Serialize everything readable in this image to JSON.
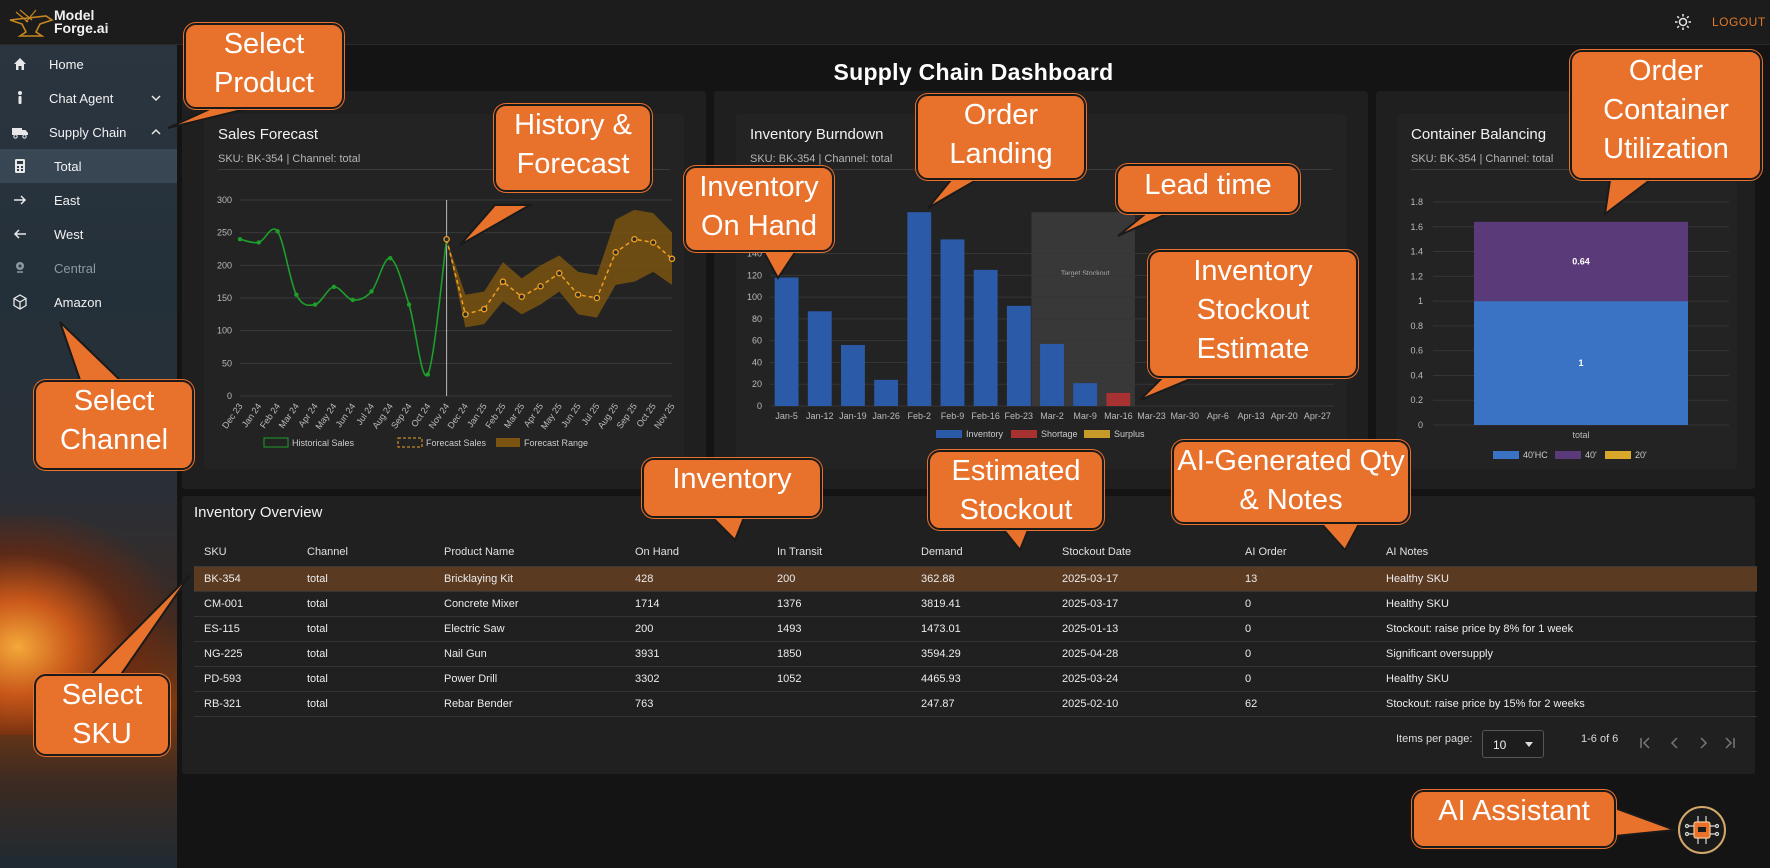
{
  "app": {
    "logo_line1": "Model",
    "logo_line2": "Forge.ai",
    "logout": "LOGOUT"
  },
  "sidebar": {
    "items": [
      {
        "label": "Home",
        "icon": "home-icon"
      },
      {
        "label": "Chat Agent",
        "icon": "person-icon"
      },
      {
        "label": "Supply Chain",
        "icon": "truck-icon"
      },
      {
        "label": "Total",
        "icon": "calculator-icon"
      },
      {
        "label": "East",
        "icon": "arrow-right-icon"
      },
      {
        "label": "West",
        "icon": "arrow-left-icon"
      },
      {
        "label": "Central",
        "icon": "pin-icon"
      },
      {
        "label": "Amazon",
        "icon": "box-icon"
      }
    ]
  },
  "page": {
    "title": "Supply Chain Dashboard"
  },
  "sales_card": {
    "title": "Sales Forecast",
    "subtitle": "SKU: BK-354 | Channel: total"
  },
  "inventory_card": {
    "title": "Inventory Burndown",
    "subtitle": "SKU: BK-354 | Channel: total"
  },
  "container_card": {
    "title": "Container Balancing",
    "subtitle": "SKU: BK-354 | Channel: total"
  },
  "chart_data": [
    {
      "type": "line",
      "x": [
        "Dec 23",
        "Jan 24",
        "Feb 24",
        "Mar 24",
        "Apr 24",
        "May 24",
        "Jun 24",
        "Jul 24",
        "Aug 24",
        "Sep 24",
        "Oct 24",
        "Nov 24",
        "Dec 24",
        "Jan 25",
        "Feb 25",
        "Mar 25",
        "Apr 25",
        "May 25",
        "Jun 25",
        "Jul 25",
        "Aug 25",
        "Sep 25",
        "Oct 25",
        "Nov 25"
      ],
      "series": [
        {
          "name": "Historical Sales",
          "values": [
            240,
            235,
            252,
            155,
            140,
            167,
            147,
            160,
            211,
            140,
            33,
            240,
            null,
            null,
            null,
            null,
            null,
            null,
            null,
            null,
            null,
            null,
            null,
            null
          ]
        },
        {
          "name": "Forecast Sales",
          "values": [
            null,
            null,
            null,
            null,
            null,
            null,
            null,
            null,
            null,
            null,
            null,
            240,
            125,
            133,
            175,
            152,
            168,
            188,
            155,
            150,
            220,
            240,
            235,
            210
          ]
        },
        {
          "name": "Forecast Range",
          "lower": [
            null,
            null,
            null,
            null,
            null,
            null,
            null,
            null,
            null,
            null,
            null,
            240,
            105,
            110,
            145,
            125,
            140,
            160,
            125,
            120,
            170,
            175,
            190,
            170
          ],
          "upper": [
            null,
            null,
            null,
            null,
            null,
            null,
            null,
            null,
            null,
            null,
            null,
            240,
            155,
            160,
            205,
            180,
            200,
            215,
            190,
            185,
            270,
            285,
            280,
            250
          ]
        }
      ],
      "ylim": [
        0,
        300
      ],
      "yticks": [
        0,
        50,
        100,
        150,
        200,
        250,
        300
      ],
      "legend": "bottom",
      "colors": {
        "historical": "#1e9e2a",
        "forecast": "#f0a020",
        "range": "#7a5410"
      }
    },
    {
      "type": "bar",
      "categories": [
        "Jan-5",
        "Jan-12",
        "Jan-19",
        "Jan-26",
        "Feb-2",
        "Feb-9",
        "Feb-16",
        "Feb-23",
        "Mar-2",
        "Mar-9",
        "Mar-16",
        "Mar-23",
        "Mar-30",
        "Apr-6",
        "Apr-13",
        "Apr-20",
        "Apr-27"
      ],
      "series": [
        {
          "name": "Inventory",
          "values": [
            118,
            87,
            56,
            24,
            178,
            153,
            125,
            92,
            57,
            21,
            null,
            null,
            null,
            null,
            null,
            null,
            null
          ]
        },
        {
          "name": "Shortage",
          "values": [
            null,
            null,
            null,
            null,
            null,
            null,
            null,
            null,
            null,
            null,
            12,
            null,
            null,
            null,
            null,
            null,
            null
          ]
        },
        {
          "name": "Surplus",
          "values": [
            null,
            null,
            null,
            null,
            null,
            null,
            null,
            null,
            null,
            null,
            null,
            null,
            null,
            null,
            null,
            null,
            null
          ]
        }
      ],
      "ylim": [
        0,
        180
      ],
      "yticks": [
        0,
        20,
        40,
        60,
        80,
        100,
        120,
        140
      ],
      "annotation": "Target Stockout",
      "legend": "bottom",
      "colors": {
        "inventory": "#2b5aa8",
        "shortage": "#a83232",
        "surplus": "#c89a2a"
      }
    },
    {
      "type": "bar",
      "categories": [
        "total"
      ],
      "series": [
        {
          "name": "40'HC",
          "values": [
            1.0
          ]
        },
        {
          "name": "40'",
          "values": [
            0.64
          ]
        },
        {
          "name": "20'",
          "values": [
            0
          ]
        }
      ],
      "stacked": true,
      "ylim": [
        0,
        1.8
      ],
      "yticks": [
        0,
        0.2,
        0.4,
        0.6,
        0.8,
        1.0,
        1.2,
        1.4,
        1.6,
        1.8
      ],
      "legend": "bottom",
      "colors": {
        "hc40": "#3a72c4",
        "f40": "#5a3a78",
        "f20": "#d8a82a"
      }
    }
  ],
  "table": {
    "title": "Inventory Overview",
    "columns": [
      "SKU",
      "Channel",
      "Product Name",
      "On Hand",
      "In Transit",
      "Demand",
      "Stockout Date",
      "AI Order",
      "AI Notes"
    ],
    "rows": [
      [
        "BK-354",
        "total",
        "Bricklaying Kit",
        "428",
        "200",
        "362.88",
        "2025-03-17",
        "13",
        "Healthy SKU"
      ],
      [
        "CM-001",
        "total",
        "Concrete Mixer",
        "1714",
        "1376",
        "3819.41",
        "2025-03-17",
        "0",
        "Healthy SKU"
      ],
      [
        "ES-115",
        "total",
        "Electric Saw",
        "200",
        "1493",
        "1473.01",
        "2025-01-13",
        "0",
        "Stockout: raise price by 8% for 1 week"
      ],
      [
        "NG-225",
        "total",
        "Nail Gun",
        "3931",
        "1850",
        "3594.29",
        "2025-04-28",
        "0",
        "Significant oversupply"
      ],
      [
        "PD-593",
        "total",
        "Power Drill",
        "3302",
        "1052",
        "4465.93",
        "2025-03-24",
        "0",
        "Healthy SKU"
      ],
      [
        "RB-321",
        "total",
        "Rebar Bender",
        "763",
        "",
        "247.87",
        "2025-02-10",
        "62",
        "Stockout: raise price by 15% for 2 weeks"
      ]
    ],
    "pager": {
      "label": "Items per page:",
      "value": "10",
      "range": "1-6 of 6"
    }
  },
  "callouts": {
    "select_product": "Select Product",
    "history_forecast": "History & Forecast",
    "inventory_on_hand": "Inventory On Hand",
    "order_landing": "Order Landing",
    "lead_time": "Lead time",
    "stockout_estimate": "Inventory Stockout Estimate",
    "container_util": "Order Container Utilization",
    "select_channel": "Select Channel",
    "inventory": "Inventory",
    "estimated_stockout": "Estimated Stockout",
    "ai_qty_notes": "AI-Generated Qty & Notes",
    "select_sku": "Select SKU",
    "ai_assistant": "AI Assistant"
  }
}
